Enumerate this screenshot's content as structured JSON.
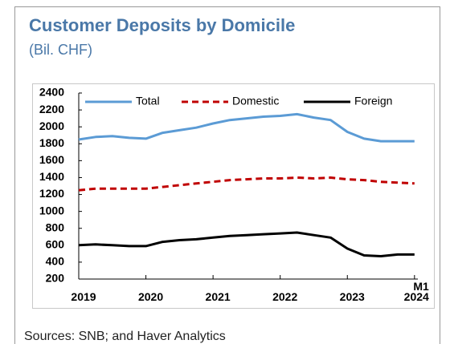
{
  "chart_data": {
    "type": "line",
    "title": "Customer Deposits by Domicile",
    "subtitle": "(Bil. CHF)",
    "source": "Sources: SNB; and Haver Analytics",
    "x": [
      2019.0,
      2019.25,
      2019.5,
      2019.75,
      2020.0,
      2020.25,
      2020.5,
      2020.75,
      2021.0,
      2021.25,
      2021.5,
      2021.75,
      2022.0,
      2022.25,
      2022.5,
      2022.75,
      2023.0,
      2023.25,
      2023.5,
      2023.75,
      2024.0
    ],
    "series": [
      {
        "name": "Total",
        "color": "#5b9bd5",
        "line_style": "solid",
        "values": [
          1850,
          1880,
          1890,
          1870,
          1860,
          1930,
          1960,
          1990,
          2040,
          2080,
          2100,
          2120,
          2130,
          2150,
          2110,
          2080,
          1940,
          1860,
          1830,
          1830,
          1830
        ]
      },
      {
        "name": "Domestic",
        "color": "#c00000",
        "line_style": "dashed",
        "values": [
          1250,
          1270,
          1270,
          1270,
          1270,
          1290,
          1310,
          1330,
          1350,
          1370,
          1380,
          1390,
          1390,
          1400,
          1390,
          1400,
          1380,
          1370,
          1350,
          1340,
          1330
        ]
      },
      {
        "name": "Foreign",
        "color": "#000000",
        "line_style": "solid",
        "values": [
          600,
          610,
          600,
          590,
          590,
          640,
          660,
          670,
          690,
          710,
          720,
          730,
          740,
          750,
          720,
          690,
          560,
          480,
          470,
          490,
          490
        ]
      }
    ],
    "xlim": [
      2019,
      2024.05
    ],
    "xticks": [
      2019,
      2020,
      2021,
      2022,
      2023,
      {
        "value": 2024,
        "label": "M1 2024"
      }
    ],
    "ylim": [
      200,
      2400
    ],
    "yticks": [
      200,
      400,
      600,
      800,
      1000,
      1200,
      1400,
      1600,
      1800,
      2000,
      2200,
      2400
    ],
    "grid": false,
    "legend": "top"
  }
}
